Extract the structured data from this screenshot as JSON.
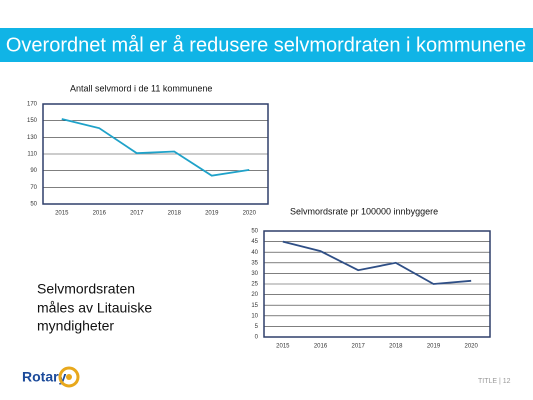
{
  "slide": {
    "title": "Overordnet mål er å redusere selvmordraten i kommunene",
    "body": [
      "Selvmordsraten",
      "måles av Litauiske",
      "myndigheter"
    ],
    "logo": "Rotary",
    "footer": "TITLE | 12"
  },
  "chart_data": [
    {
      "type": "line",
      "title": "Antall selvmord i de 11 kommunene",
      "categories": [
        "2015",
        "2016",
        "2017",
        "2018",
        "2019",
        "2020"
      ],
      "series": [
        {
          "color": "#1fa2c9",
          "values": [
            152,
            141,
            111,
            113,
            84,
            91
          ]
        }
      ],
      "ylim": [
        50,
        170
      ],
      "yticks": [
        50,
        70,
        90,
        110,
        130,
        150,
        170
      ],
      "grid": true
    },
    {
      "type": "line",
      "title": "Selvmordsrate pr 100000 innbyggere",
      "categories": [
        "2015",
        "2016",
        "2017",
        "2018",
        "2019",
        "2020"
      ],
      "series": [
        {
          "color": "#2f4f86",
          "values": [
            45,
            40.5,
            31.5,
            35,
            25,
            26.5
          ]
        }
      ],
      "ylim": [
        0,
        50
      ],
      "yticks": [
        0,
        5,
        10,
        15,
        20,
        25,
        30,
        35,
        40,
        45,
        50
      ],
      "grid": true
    }
  ]
}
